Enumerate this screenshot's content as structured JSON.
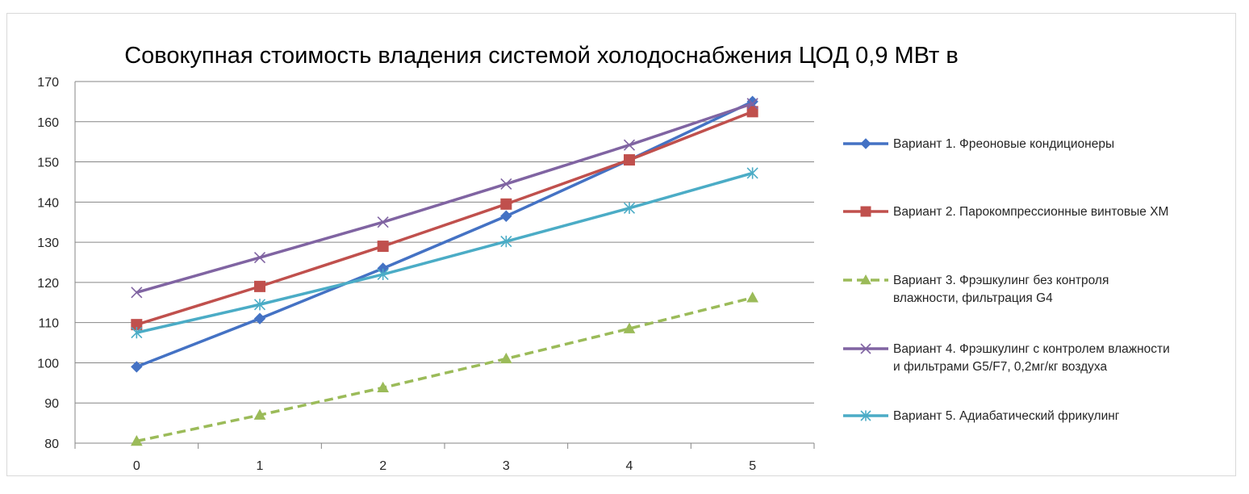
{
  "chart_data": {
    "type": "line",
    "title": "Совокупная стоимость владения системой холодоснабжения ЦОД 0,9 МВт в",
    "xlabel": "",
    "ylabel": "",
    "x": [
      0,
      1,
      2,
      3,
      4,
      5
    ],
    "x_tick_labels": [
      "0",
      "1",
      "2",
      "3",
      "4",
      "5"
    ],
    "ylim": [
      80,
      170
    ],
    "y_ticks": [
      80,
      90,
      100,
      110,
      120,
      130,
      140,
      150,
      160,
      170
    ],
    "y_tick_labels": [
      "80",
      "90",
      "100",
      "110",
      "120",
      "130",
      "140",
      "150",
      "160",
      "170"
    ],
    "grid": "horizontal",
    "legend_position": "right",
    "series": [
      {
        "name": "Вариант 1. Фреоновые кондиционеры",
        "legend_lines": [
          "Вариант 1. Фреоновые кондиционеры"
        ],
        "values": [
          99,
          111,
          123.5,
          136.5,
          150.5,
          165
        ],
        "color": "#4472c4",
        "marker": "diamond",
        "dashed": false
      },
      {
        "name": "Вариант 2. Парокомпрессионные винтовые ХМ",
        "legend_lines": [
          "Вариант 2. Парокомпрессионные винтовые ХМ"
        ],
        "values": [
          109.5,
          119,
          129,
          139.5,
          150.5,
          162.5
        ],
        "color": "#c0504d",
        "marker": "square",
        "dashed": false
      },
      {
        "name": "Вариант 3. Фрэшкулинг без контроля влажности, фильтрация G4",
        "legend_lines": [
          "Вариант 3. Фрэшкулинг без контроля",
          "влажности, фильтрация G4"
        ],
        "values": [
          80.5,
          87,
          93.8,
          101,
          108.5,
          116.2
        ],
        "color": "#9bbb59",
        "marker": "triangle",
        "dashed": true
      },
      {
        "name": "Вариант 4. Фрэшкулинг с контролем влажности и фильтрами G5/F7, 0,2мг/кг воздуха",
        "legend_lines": [
          "Вариант 4. Фрэшкулинг с контролем влажности",
          "и фильтрами G5/F7, 0,2мг/кг воздуха"
        ],
        "values": [
          117.5,
          126.2,
          135,
          144.5,
          154.2,
          164.5
        ],
        "color": "#8064a2",
        "marker": "x",
        "dashed": false
      },
      {
        "name": "Вариант 5. Адиабатический фрикулинг",
        "legend_lines": [
          "Вариант 5. Адиабатический фрикулинг"
        ],
        "values": [
          107.5,
          114.5,
          122,
          130.2,
          138.5,
          147.2
        ],
        "color": "#4bacc6",
        "marker": "asterisk",
        "dashed": false
      }
    ]
  }
}
